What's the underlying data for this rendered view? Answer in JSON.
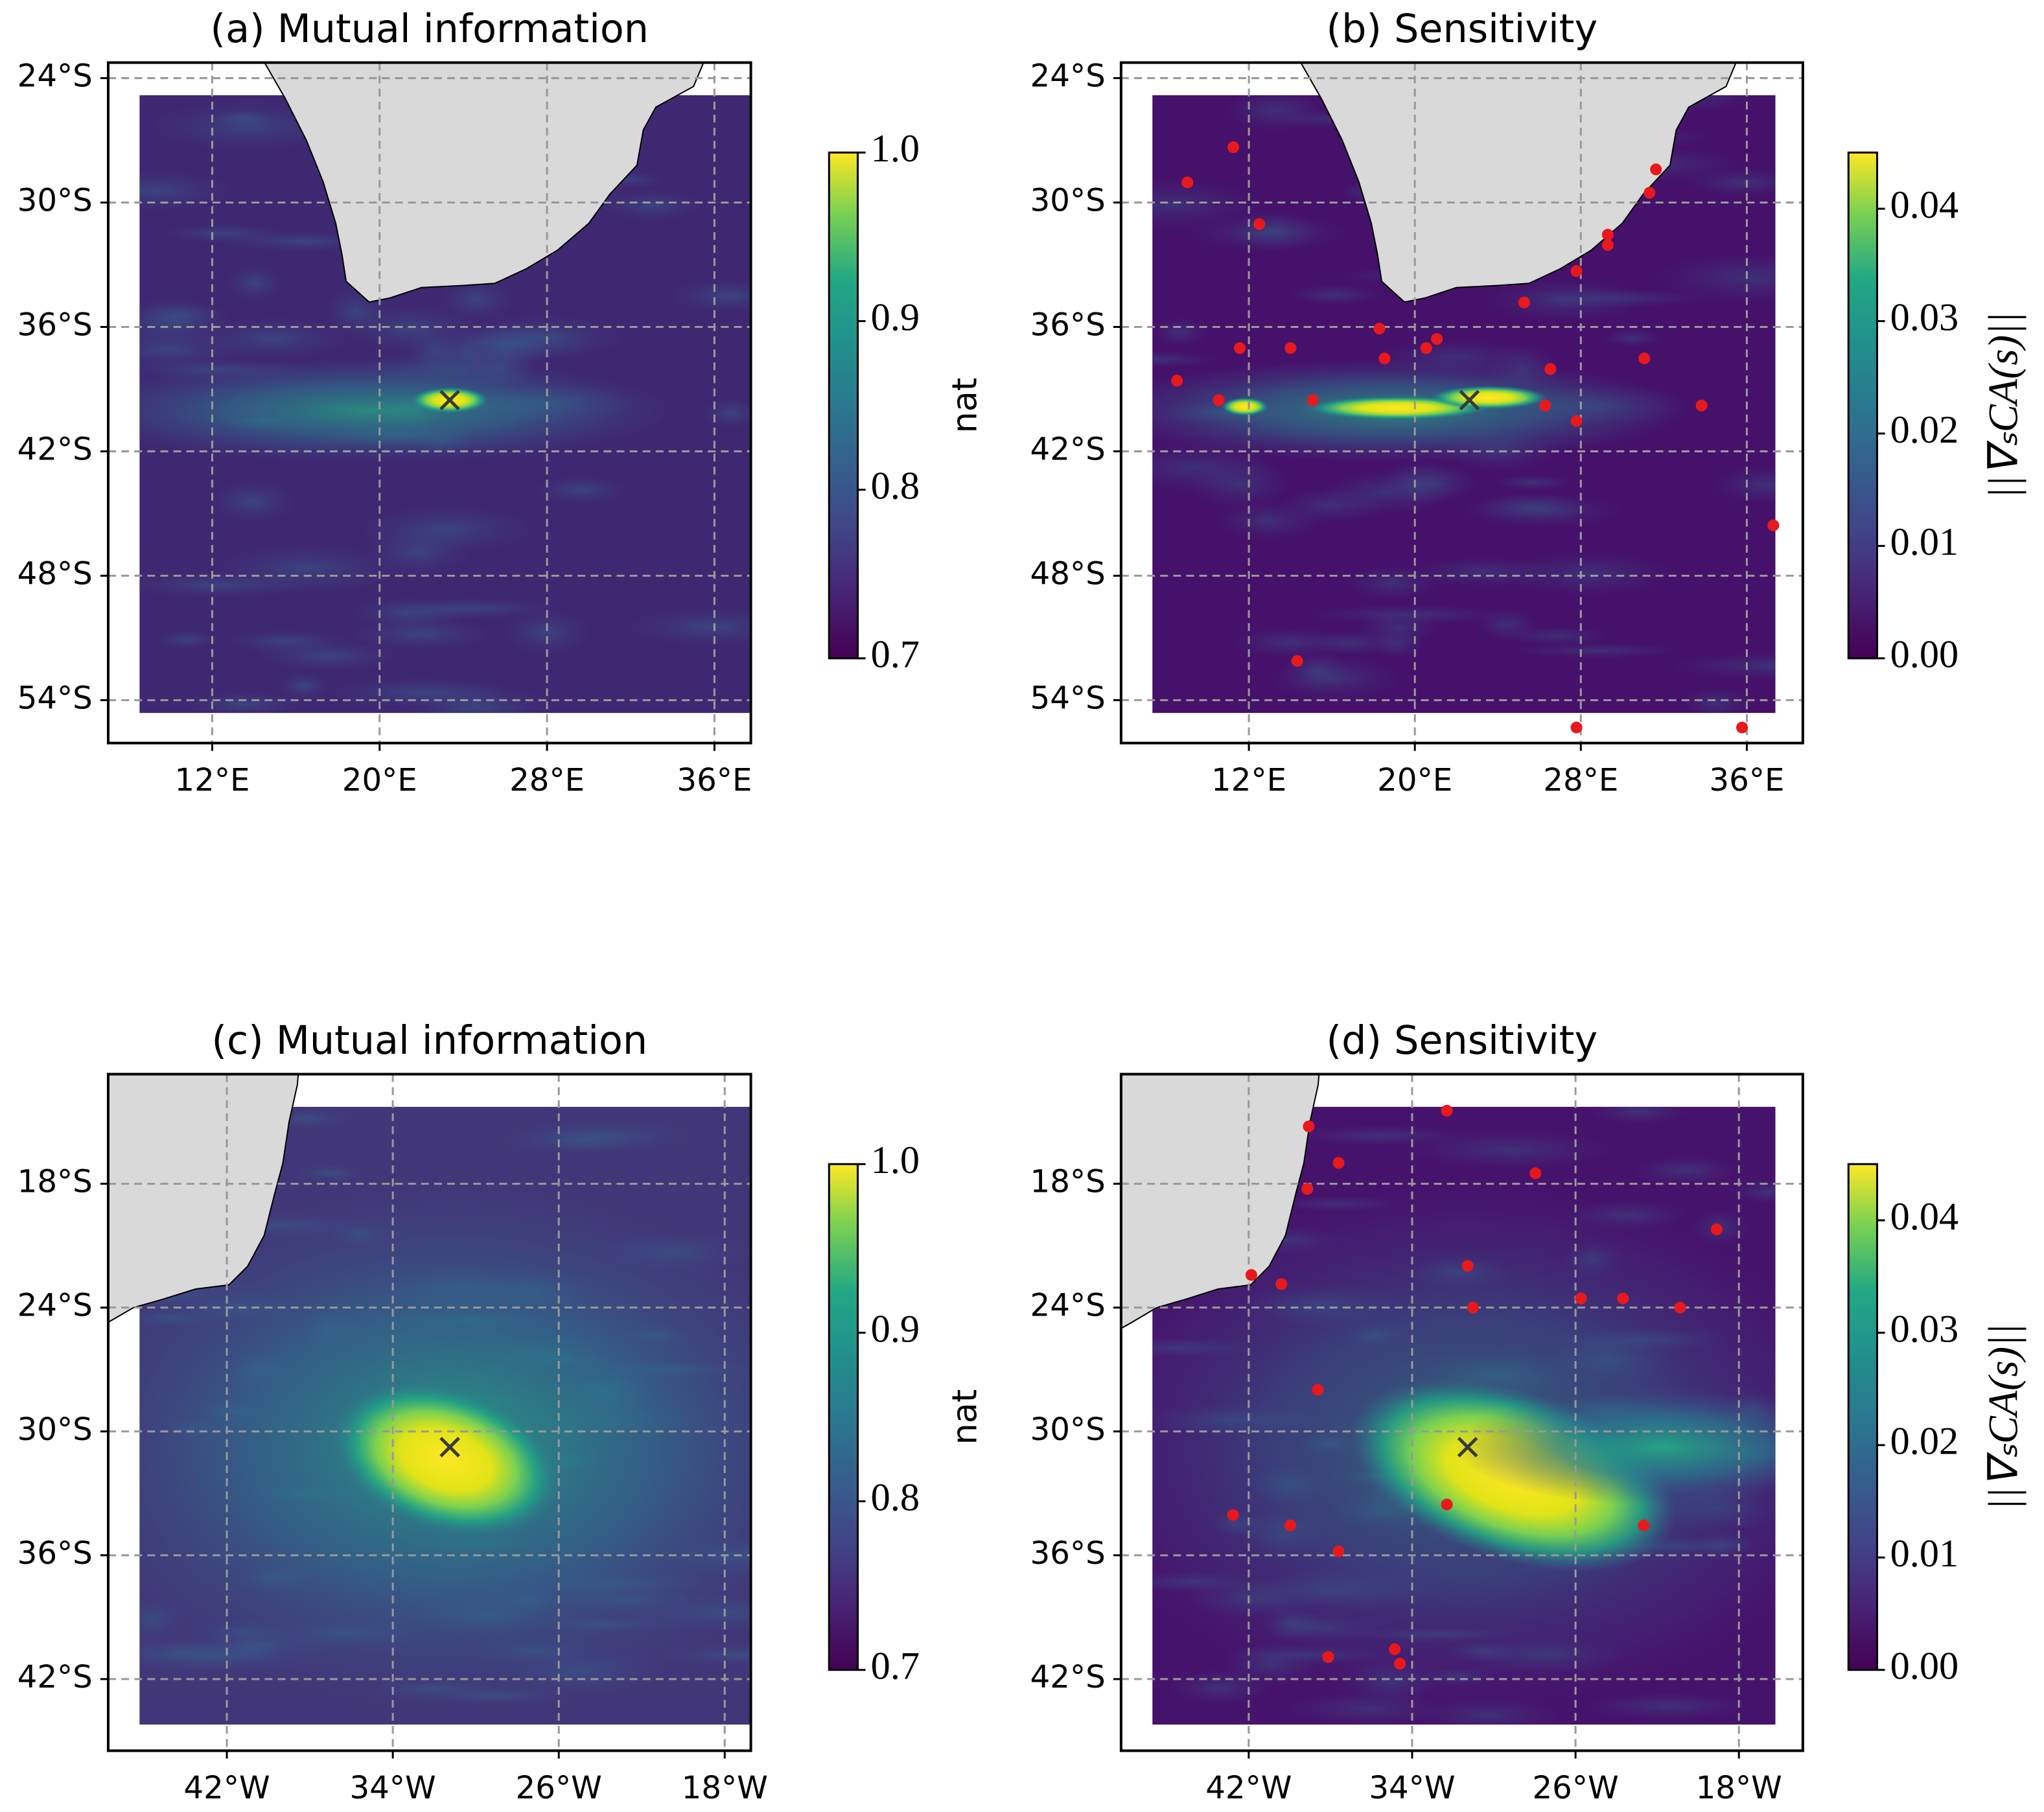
{
  "chart_data": [
    {
      "type": "map",
      "title": "(a) Mutual information",
      "xlim": [
        7.03,
        37.74
      ],
      "ylim": [
        -56.07,
        -23.25
      ],
      "xticks": [
        {
          "value": 12,
          "label": "12°E"
        },
        {
          "value": 20,
          "label": "20°E"
        },
        {
          "value": 28,
          "label": "28°E"
        },
        {
          "value": 36,
          "label": "36°E"
        }
      ],
      "yticks": [
        {
          "value": -24,
          "label": "24°S"
        },
        {
          "value": -30,
          "label": "30°S"
        },
        {
          "value": -36,
          "label": "36°S"
        },
        {
          "value": -42,
          "label": "42°S"
        },
        {
          "value": -48,
          "label": "48°S"
        },
        {
          "value": -54,
          "label": "54°S"
        }
      ],
      "grid": true,
      "colorbar": {
        "label": "nat",
        "lim": [
          0.7,
          1.0
        ],
        "ticks": [
          {
            "value": 0.7,
            "label": "0.7"
          },
          {
            "value": 0.8,
            "label": "0.8"
          },
          {
            "value": 0.9,
            "label": "0.9"
          },
          {
            "value": 1.0,
            "label": "1.0"
          }
        ]
      },
      "target": {
        "lon": 23.35,
        "lat": -39.53
      }
    },
    {
      "type": "map",
      "title": "(b) Sensitivity",
      "xlim": [
        5.84,
        38.7
      ],
      "ylim": [
        -56.07,
        -23.25
      ],
      "xticks": [
        {
          "value": 12,
          "label": "12°E"
        },
        {
          "value": 20,
          "label": "20°E"
        },
        {
          "value": 28,
          "label": "28°E"
        },
        {
          "value": 36,
          "label": "36°E"
        }
      ],
      "yticks": [
        {
          "value": -24,
          "label": "24°S"
        },
        {
          "value": -30,
          "label": "30°S"
        },
        {
          "value": -36,
          "label": "36°S"
        },
        {
          "value": -42,
          "label": "42°S"
        },
        {
          "value": -48,
          "label": "48°S"
        },
        {
          "value": -54,
          "label": "54°S"
        }
      ],
      "grid": true,
      "colorbar": {
        "label": "||∇ₛCA(s)||",
        "lim": [
          0,
          0.045
        ],
        "ticks": [
          {
            "value": 0,
            "label": "0.00"
          },
          {
            "value": 0.01,
            "label": "0.01"
          },
          {
            "value": 0.02,
            "label": "0.02"
          },
          {
            "value": 0.03,
            "label": "0.03"
          },
          {
            "value": 0.04,
            "label": "0.04"
          }
        ]
      },
      "target": {
        "lon": 22.63,
        "lat": -39.53
      },
      "points": {
        "color": "#e8191c",
        "lon": [
          9.04,
          11.25,
          12.5,
          11.56,
          8.54,
          10.55,
          14.01,
          15.08,
          18.29,
          18.54,
          20.55,
          21.06,
          25.27,
          26.53,
          26.28,
          27.79,
          29.3,
          29.3,
          31.31,
          31.62,
          27.79,
          31.06,
          33.82,
          37.28,
          14.33,
          27.79,
          35.77
        ],
        "lat": [
          -29.03,
          -27.33,
          -31.04,
          -37.02,
          -38.59,
          -39.53,
          -37.02,
          -39.53,
          -36.08,
          -37.52,
          -37.02,
          -36.58,
          -34.82,
          -38.03,
          -39.79,
          -33.31,
          -31.55,
          -32.05,
          -29.53,
          -28.4,
          -40.54,
          -37.52,
          -39.79,
          -45.57,
          -52.11,
          -55.32,
          -55.32
        ]
      }
    },
    {
      "type": "map",
      "title": "(c) Mutual information",
      "xlim": [
        -47.72,
        -16.74
      ],
      "ylim": [
        -45.47,
        -12.69
      ],
      "xticks": [
        {
          "value": -42,
          "label": "42°W"
        },
        {
          "value": -34,
          "label": "34°W"
        },
        {
          "value": -26,
          "label": "26°W"
        },
        {
          "value": -18,
          "label": "18°W"
        }
      ],
      "yticks": [
        {
          "value": -18,
          "label": "18°S"
        },
        {
          "value": -24,
          "label": "24°S"
        },
        {
          "value": -30,
          "label": "30°S"
        },
        {
          "value": -36,
          "label": "36°S"
        },
        {
          "value": -42,
          "label": "42°S"
        }
      ],
      "grid": true,
      "colorbar": {
        "label": "nat",
        "lim": [
          0.7,
          1.0
        ],
        "ticks": [
          {
            "value": 0.7,
            "label": "0.7"
          },
          {
            "value": 0.8,
            "label": "0.8"
          },
          {
            "value": 0.9,
            "label": "0.9"
          },
          {
            "value": 1.0,
            "label": "1.0"
          }
        ]
      },
      "target": {
        "lon": -31.25,
        "lat": -30.76
      }
    },
    {
      "type": "map",
      "title": "(d) Sensitivity",
      "xlim": [
        -48.25,
        -14.87
      ],
      "ylim": [
        -45.47,
        -12.69
      ],
      "xticks": [
        {
          "value": -42,
          "label": "42°W"
        },
        {
          "value": -34,
          "label": "34°W"
        },
        {
          "value": -26,
          "label": "26°W"
        },
        {
          "value": -18,
          "label": "18°W"
        }
      ],
      "yticks": [
        {
          "value": -18,
          "label": "18°S"
        },
        {
          "value": -24,
          "label": "24°S"
        },
        {
          "value": -30,
          "label": "30°S"
        },
        {
          "value": -36,
          "label": "36°S"
        },
        {
          "value": -42,
          "label": "42°S"
        }
      ],
      "grid": true,
      "colorbar": {
        "label": "||∇ₛCA(s)||",
        "lim": [
          0,
          0.045
        ],
        "ticks": [
          {
            "value": 0,
            "label": "0.00"
          },
          {
            "value": 0.01,
            "label": "0.01"
          },
          {
            "value": 0.02,
            "label": "0.02"
          },
          {
            "value": 0.03,
            "label": "0.03"
          },
          {
            "value": 0.04,
            "label": "0.04"
          }
        ]
      },
      "target": {
        "lon": -31.28,
        "lat": -30.76
      },
      "points": {
        "color": "#e8191c",
        "lon": [
          -32.3,
          -39.06,
          -37.6,
          -27.96,
          -39.13,
          -19.09,
          -31.28,
          -41.87,
          -40.4,
          -25.73,
          -23.68,
          -20.88,
          -31.02,
          -38.62,
          -32.3,
          -42.77,
          -39.96,
          -37.6,
          -22.66,
          -34.85,
          -34.6,
          -38.11
        ],
        "lat": [
          -14.46,
          -15.22,
          -16.99,
          -17.49,
          -18.25,
          -20.21,
          -21.98,
          -22.42,
          -22.86,
          -23.56,
          -23.56,
          -24.0,
          -24.0,
          -27.98,
          -33.54,
          -34.05,
          -34.55,
          -35.81,
          -34.55,
          -40.55,
          -41.25,
          -40.93
        ]
      }
    }
  ]
}
